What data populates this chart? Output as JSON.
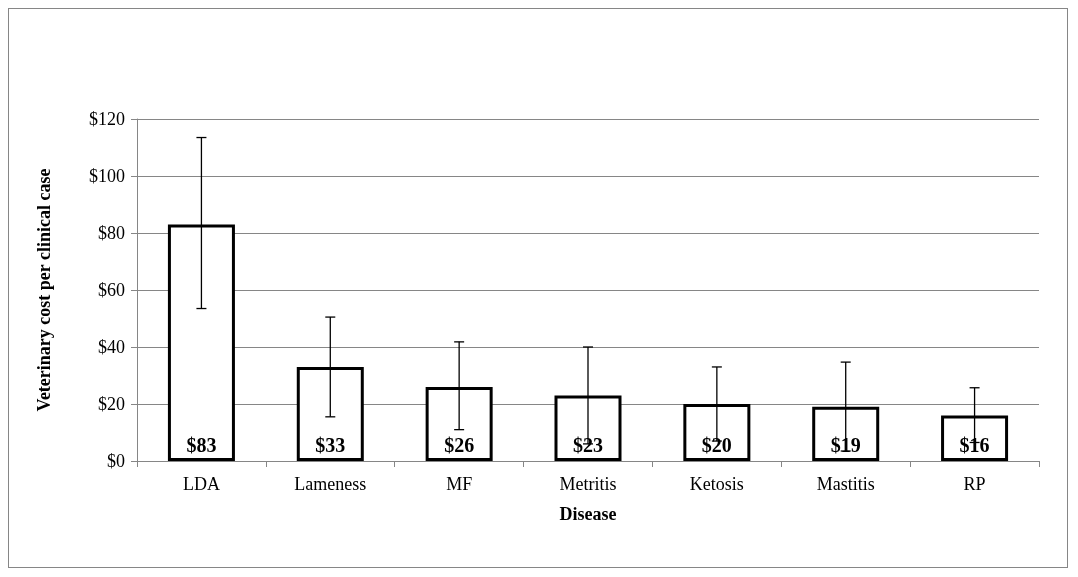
{
  "chart_data": {
    "type": "bar",
    "xlabel": "Disease",
    "ylabel": "Veterinary cost per clinical case",
    "categories": [
      "LDA",
      "Lameness",
      "MF",
      "Metritis",
      "Ketosis",
      "Mastitis",
      "RP"
    ],
    "values": [
      83,
      33,
      26,
      23,
      20,
      19,
      16
    ],
    "color": "#ffffff",
    "errors": [
      [
        53.5,
        113.5
      ],
      [
        15.5,
        50.5
      ],
      [
        11,
        41.8
      ],
      [
        6,
        40
      ],
      [
        7,
        33
      ],
      [
        3.5,
        34.7
      ],
      [
        6.5,
        25.7
      ]
    ],
    "value_labels": [
      "$83",
      "$33",
      "$26",
      "$23",
      "$20",
      "$19",
      "$16"
    ],
    "ylim": [
      0,
      120
    ],
    "yticks": [
      {
        "value": 0,
        "label": "$0"
      },
      {
        "value": 20,
        "label": "$20"
      },
      {
        "value": 40,
        "label": "$40"
      },
      {
        "value": 60,
        "label": "$60"
      },
      {
        "value": 80,
        "label": "$80"
      },
      {
        "value": 100,
        "label": "$100"
      },
      {
        "value": 120,
        "label": "$120"
      }
    ],
    "grid": "y"
  }
}
